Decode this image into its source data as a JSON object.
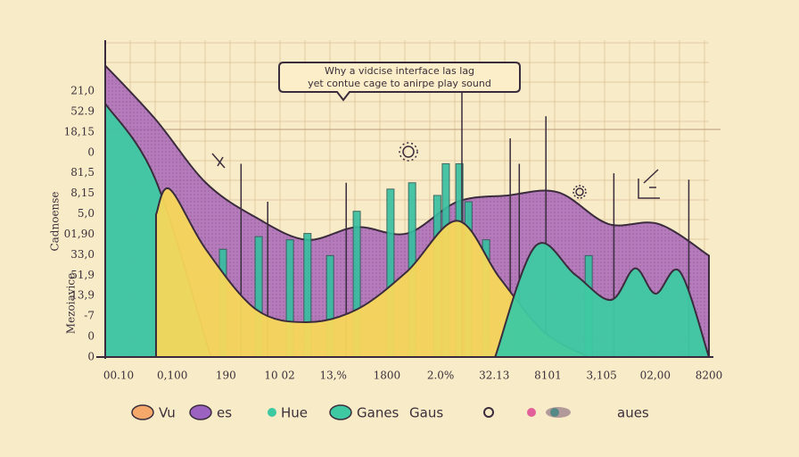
{
  "chart_data": {
    "type": "area",
    "title": [
      "Why a vidcise interface las lag",
      "yet contue cage to anirpe play sound"
    ],
    "y_axis_labels": [
      "Cadnoense",
      "Mezoiavice"
    ],
    "y_labels": [
      "21,0",
      "52.9",
      "18,15",
      "0",
      "81,5",
      "8,15",
      "5,0",
      "01,90",
      "33,0",
      "51,9",
      "13,9",
      "-7",
      "0",
      "0"
    ],
    "x_labels": [
      "00.10",
      "0,100",
      "190",
      "10 02",
      "13,%",
      "1800",
      "2.0%",
      "32.13",
      "8101",
      "3,105",
      "02,00",
      "8200"
    ],
    "xlim": [
      0,
      12
    ],
    "ylim": [
      0,
      100
    ],
    "grid": true,
    "series": [
      {
        "name": "es",
        "color": "#a45fb8",
        "x": [
          0,
          1,
          2,
          3,
          4,
          5,
          6,
          7,
          8,
          9,
          10,
          11,
          12
        ],
        "values": [
          92,
          75,
          55,
          44,
          37,
          41,
          39,
          49,
          51,
          52,
          42,
          42,
          32
        ]
      },
      {
        "name": "Hue",
        "color": "#3ec9a2",
        "x": [
          0,
          1,
          2.1
        ],
        "values": [
          80,
          56,
          0
        ]
      },
      {
        "name": "Vu",
        "color": "#f7d75a",
        "x": [
          1.01,
          1.28,
          2.0,
          3.0,
          4.0,
          5.0,
          6.0,
          7.0,
          7.84,
          8.72,
          9.61
        ],
        "values": [
          45,
          53,
          34,
          15,
          11,
          15,
          27,
          43,
          25,
          8,
          0
        ]
      },
      {
        "name": "Ganes",
        "color": "#3ec9a2",
        "x": [
          7.75,
          8.55,
          9.34,
          10.05,
          10.53,
          10.94,
          11.42,
          12
        ],
        "values": [
          0,
          35,
          26,
          18,
          28,
          20,
          27,
          0
        ]
      }
    ],
    "bars": {
      "color": "#35bfa0",
      "x": [
        2.34,
        3.05,
        3.67,
        4.02,
        4.47,
        5.0,
        5.67,
        6.1,
        6.6,
        6.77,
        7.04,
        7.22,
        7.57,
        9.61
      ],
      "values": [
        34,
        38,
        37,
        39,
        32,
        46,
        53,
        55,
        51,
        61,
        61,
        49,
        37,
        32
      ]
    },
    "stems": {
      "color": "#3a2c3c",
      "x": [
        2.7,
        3.23,
        4.79,
        7.09,
        8.05,
        8.23,
        8.76,
        10.11,
        11.6
      ],
      "values": [
        61,
        49,
        55,
        85,
        69,
        61,
        76,
        58,
        56
      ]
    },
    "legend": [
      {
        "name": "Vu",
        "color": "#f4a86a"
      },
      {
        "name": "es",
        "color": "#9c62c0"
      },
      {
        "name": "Hue",
        "color": "#3ec9a2"
      },
      {
        "name": "Ganes",
        "color": "#3ec9a2"
      },
      {
        "name": "Gaus",
        "color": "#f7d75a"
      },
      {
        "name": "aues",
        "color": "#3ec9a2"
      }
    ]
  }
}
